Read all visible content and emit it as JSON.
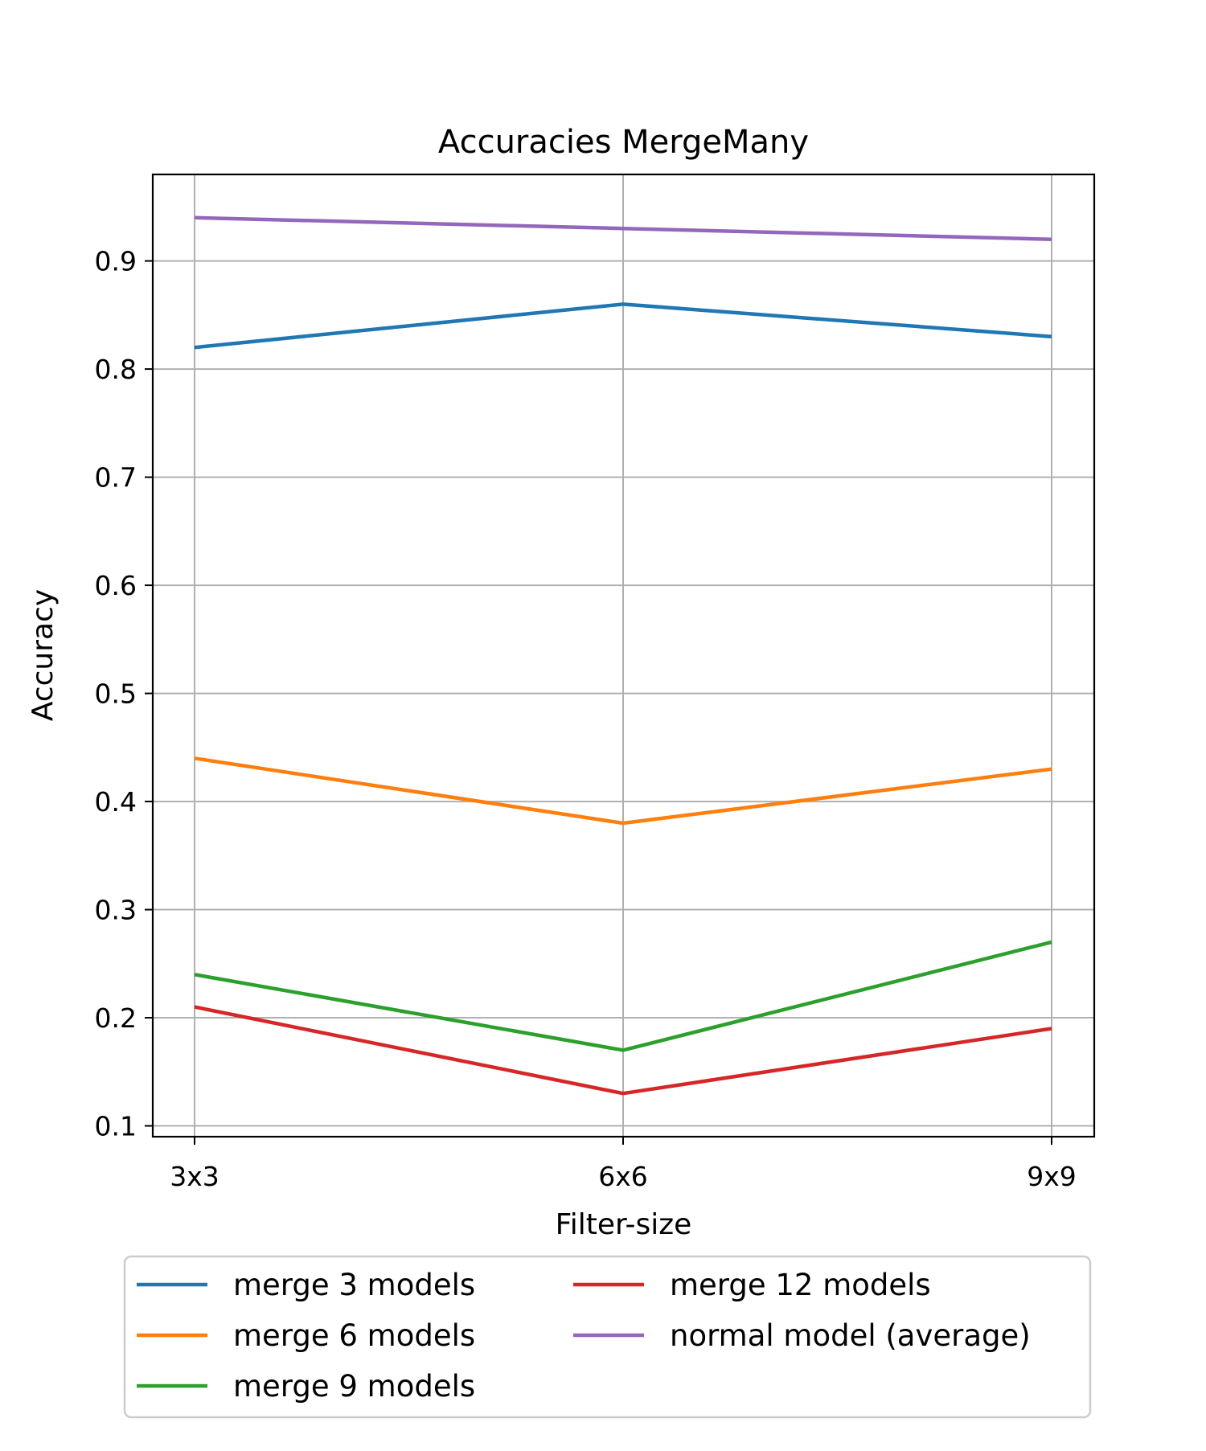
{
  "chart_data": {
    "type": "line",
    "title": "Accuracies MergeMany",
    "xlabel": "Filter-size",
    "ylabel": "Accuracy",
    "categories": [
      "3x3",
      "6x6",
      "9x9"
    ],
    "yticks": [
      0.1,
      0.2,
      0.3,
      0.4,
      0.5,
      0.6,
      0.7,
      0.8,
      0.9
    ],
    "ylim": [
      0.09,
      0.98
    ],
    "grid": true,
    "legend_position": "below",
    "series": [
      {
        "name": "merge 3 models",
        "color": "#1f77b4",
        "values": [
          0.82,
          0.86,
          0.83
        ]
      },
      {
        "name": "merge 6 models",
        "color": "#ff7f0e",
        "values": [
          0.44,
          0.38,
          0.43
        ]
      },
      {
        "name": "merge 9 models",
        "color": "#2ca02c",
        "values": [
          0.24,
          0.17,
          0.27
        ]
      },
      {
        "name": "merge 12 models",
        "color": "#d62728",
        "values": [
          0.21,
          0.13,
          0.19
        ]
      },
      {
        "name": "normal model (average)",
        "color": "#9467bd",
        "values": [
          0.94,
          0.93,
          0.92
        ]
      }
    ]
  }
}
